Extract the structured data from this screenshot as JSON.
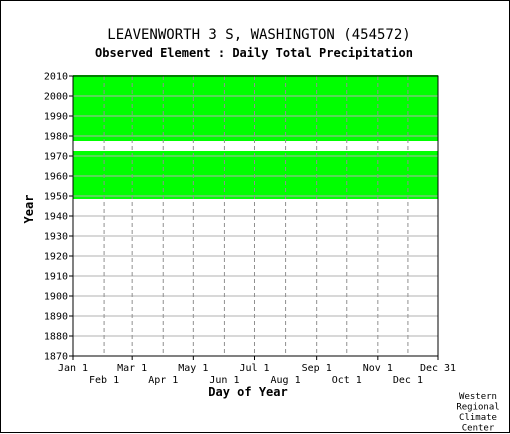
{
  "chart_data": {
    "type": "heatmap",
    "title": "LEAVENWORTH 3 S, WASHINGTON   (454572)",
    "subtitle": "Observed Element : Daily Total Precipitation",
    "xlabel": "Day of Year",
    "ylabel": "Year",
    "x_ticks_top": [
      "Jan 1",
      "Mar 1",
      "May 1",
      "Jul 1",
      "Sep 1",
      "Nov 1",
      "Dec 31"
    ],
    "x_ticks_bottom": [
      "Feb 1",
      "Apr 1",
      "Jun 1",
      "Aug 1",
      "Oct 1",
      "Dec 1"
    ],
    "y_ticks": [
      "2010",
      "2000",
      "1990",
      "1980",
      "1970",
      "1960",
      "1950",
      "1940",
      "1930",
      "1920",
      "1910",
      "1900",
      "1890",
      "1880",
      "1870"
    ],
    "xlim": [
      1,
      365
    ],
    "ylim": [
      1870,
      2010
    ],
    "grid": true,
    "color_observed": "#00ff00",
    "observed_year_ranges": [
      [
        1949,
        1972
      ],
      [
        1978,
        2010
      ]
    ],
    "credit": [
      "Western",
      "Regional",
      "Climate",
      "Center"
    ]
  }
}
